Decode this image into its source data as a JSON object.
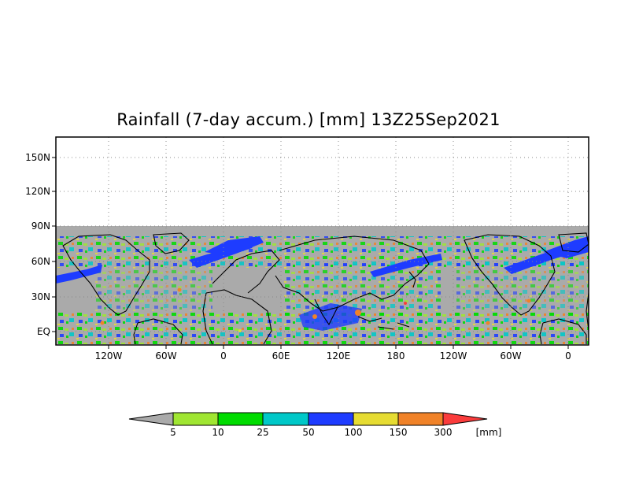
{
  "title": "Rainfall (7-day accum.) [mm] 13Z25Sep2021",
  "map": {
    "lat_labels": [
      "150N",
      "120N",
      "90N",
      "60N",
      "30N",
      "EQ"
    ],
    "lon_labels": [
      "120W",
      "60W",
      "0",
      "60E",
      "120E",
      "180",
      "120W",
      "60W",
      "0"
    ],
    "no_data_color": "#aaaaaa",
    "grid": "dotted"
  },
  "colorbar": {
    "unit": "[mm]",
    "labels": [
      "5",
      "10",
      "25",
      "50",
      "100",
      "150",
      "300"
    ],
    "colors": [
      "#a0e632",
      "#00dc00",
      "#00c8c8",
      "#1e3cff",
      "#e6dc32",
      "#f08228",
      "#fa3c3c"
    ],
    "under_color": "#aaaaaa"
  }
}
